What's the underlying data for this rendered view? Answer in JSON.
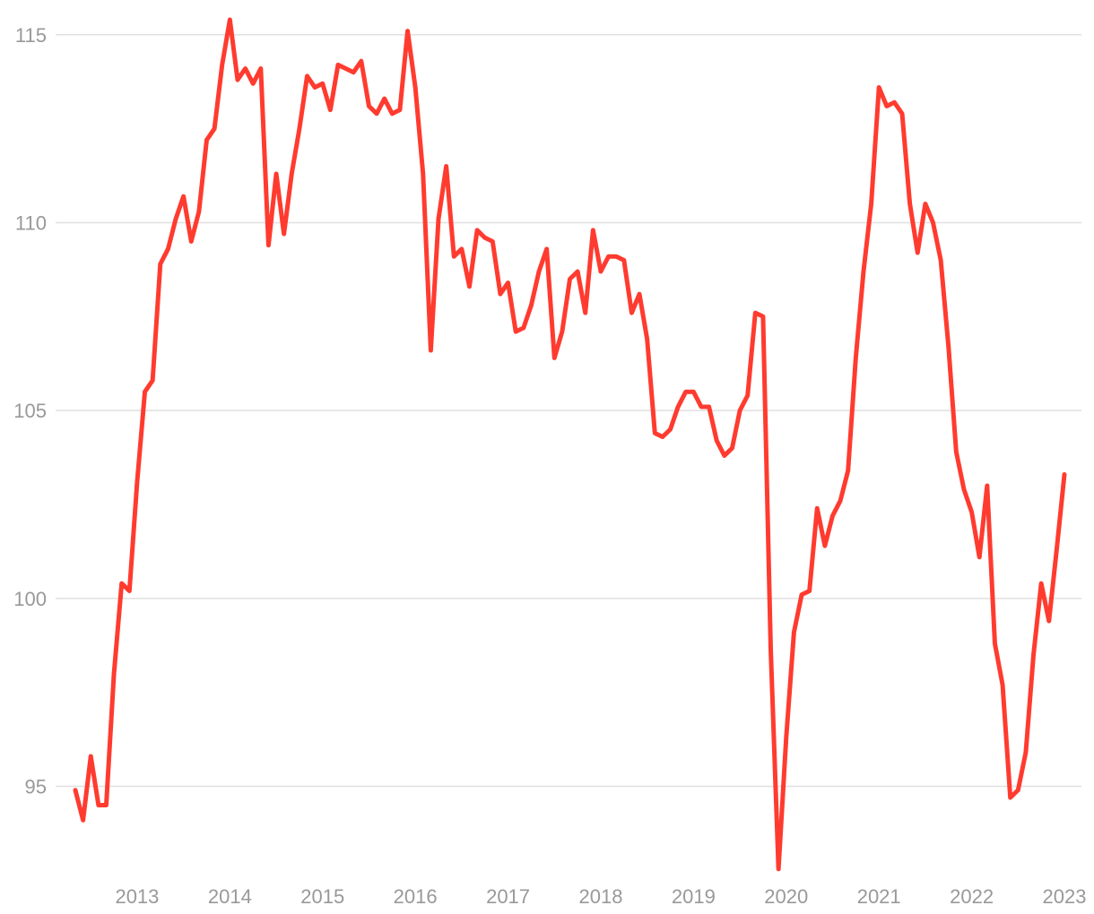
{
  "chart_data": {
    "type": "line",
    "title": "",
    "xlabel": "",
    "ylabel": "",
    "ylim": [
      92.7,
      115.4
    ],
    "xlim": [
      "2012-09",
      "2023-05"
    ],
    "grid": "horizontal",
    "legend": "none",
    "colors": {
      "line": "#ff3b2f",
      "grid": "#e0e0e0",
      "tick": "#999999"
    },
    "y_ticks": [
      "95",
      "100",
      "105",
      "110",
      "115"
    ],
    "x_ticks": [
      "2013",
      "2014",
      "2015",
      "2016",
      "2017",
      "2018",
      "2019",
      "2020",
      "2021",
      "2022",
      "2023"
    ],
    "series": [
      {
        "x": [
          "2012-09",
          "2012-10",
          "2012-11",
          "2012-12",
          "2013-01",
          "2013-02",
          "2013-03",
          "2013-04",
          "2013-05",
          "2013-06",
          "2013-07",
          "2013-08",
          "2013-09",
          "2013-10",
          "2013-11",
          "2013-12",
          "2014-01",
          "2014-02",
          "2014-03",
          "2014-04",
          "2014-05",
          "2014-06",
          "2014-07",
          "2014-08",
          "2014-09",
          "2014-10",
          "2014-11",
          "2014-12",
          "2015-01",
          "2015-02",
          "2015-03",
          "2015-04",
          "2015-05",
          "2015-06",
          "2015-07",
          "2015-08",
          "2015-09",
          "2015-10",
          "2015-11",
          "2015-12",
          "2016-01",
          "2016-02",
          "2016-03",
          "2016-04",
          "2016-05",
          "2016-06",
          "2016-07",
          "2016-08",
          "2016-09",
          "2016-10",
          "2016-11",
          "2016-12",
          "2017-01",
          "2017-02",
          "2017-03",
          "2017-04",
          "2017-05",
          "2017-06",
          "2017-07",
          "2017-08",
          "2017-09",
          "2017-10",
          "2017-11",
          "2017-12",
          "2018-01",
          "2018-02",
          "2018-03",
          "2018-04",
          "2018-05",
          "2018-06",
          "2018-07",
          "2018-08",
          "2018-09",
          "2018-10",
          "2018-11",
          "2018-12",
          "2019-01",
          "2019-02",
          "2019-03",
          "2019-04",
          "2019-05",
          "2019-06",
          "2019-07",
          "2019-08",
          "2019-09",
          "2019-10",
          "2019-11",
          "2019-12",
          "2020-01",
          "2020-02",
          "2020-03",
          "2020-04",
          "2020-05",
          "2020-06",
          "2020-07",
          "2020-08",
          "2020-09",
          "2020-10",
          "2020-11",
          "2020-12",
          "2021-01",
          "2021-02",
          "2021-03",
          "2021-04",
          "2021-05",
          "2021-06",
          "2021-07",
          "2021-08",
          "2021-09",
          "2021-10",
          "2021-11",
          "2021-12",
          "2022-01",
          "2022-02",
          "2022-03",
          "2022-04",
          "2022-05",
          "2022-06",
          "2022-07",
          "2022-08",
          "2022-09",
          "2022-10",
          "2022-11",
          "2022-12",
          "2023-01",
          "2023-02",
          "2023-03",
          "2023-04",
          "2023-05"
        ],
        "values": [
          94.9,
          94.1,
          95.8,
          94.5,
          94.5,
          98.0,
          100.4,
          100.2,
          103.1,
          105.5,
          105.8,
          108.9,
          109.3,
          110.1,
          110.7,
          109.5,
          110.3,
          112.2,
          112.5,
          114.2,
          115.4,
          113.8,
          114.1,
          113.7,
          114.1,
          109.4,
          111.3,
          109.7,
          111.3,
          112.5,
          113.9,
          113.6,
          113.7,
          113.0,
          114.2,
          114.1,
          114.0,
          114.3,
          113.1,
          112.9,
          113.3,
          112.9,
          113.0,
          115.1,
          113.6,
          111.3,
          106.6,
          110.1,
          111.5,
          109.1,
          109.3,
          108.3,
          109.8,
          109.6,
          109.5,
          108.1,
          108.4,
          107.1,
          107.2,
          107.8,
          108.7,
          109.3,
          106.4,
          107.1,
          108.5,
          108.7,
          107.6,
          109.8,
          108.7,
          109.1,
          109.1,
          109.0,
          107.6,
          108.1,
          106.9,
          104.4,
          104.3,
          104.5,
          105.1,
          105.5,
          105.5,
          105.1,
          105.1,
          104.2,
          103.8,
          104.0,
          105.0,
          105.4,
          107.6,
          107.5,
          98.6,
          92.8,
          96.3,
          99.1,
          100.1,
          100.2,
          102.4,
          101.4,
          102.2,
          102.6,
          103.4,
          106.4,
          108.7,
          110.5,
          113.6,
          113.1,
          113.2,
          112.9,
          110.5,
          109.2,
          110.5,
          110.0,
          109.0,
          106.7,
          103.9,
          102.9,
          102.3,
          101.1,
          103.0,
          98.8,
          97.7,
          94.7,
          94.9,
          95.9,
          98.5,
          100.4,
          99.4,
          101.3,
          103.3
        ]
      }
    ]
  }
}
